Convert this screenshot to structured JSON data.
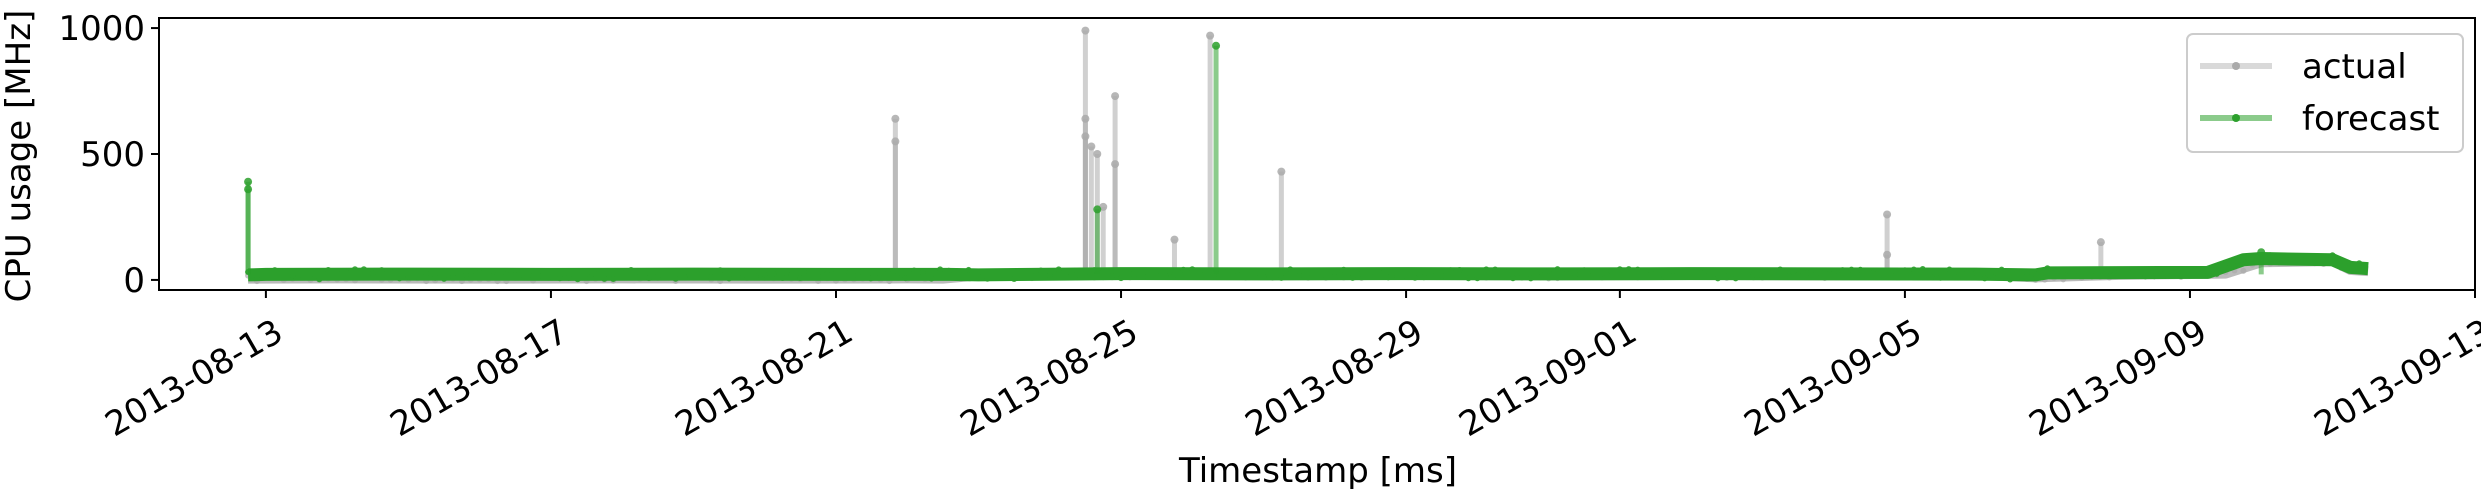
{
  "chart_data": {
    "type": "line",
    "title": "",
    "xlabel": "Timestamp [ms]",
    "ylabel": "CPU usage [MHz]",
    "ylim": [
      -40,
      1040
    ],
    "xlim": [
      "2013-08-11T12:00",
      "2013-09-13"
    ],
    "x_ticks": [
      "2013-08-13",
      "2013-08-17",
      "2013-08-21",
      "2013-08-25",
      "2013-08-29",
      "2013-09-01",
      "2013-09-05",
      "2013-09-09",
      "2013-09-13"
    ],
    "y_ticks": [
      0,
      500,
      1000
    ],
    "grid": false,
    "legend_position": "top-right",
    "series": [
      {
        "name": "actual",
        "color": "#aaaaaa",
        "baseline": [
          [
            "2013-08-12T18:00",
            5
          ],
          [
            "2013-08-14T00:00",
            6
          ],
          [
            "2013-08-16T00:00",
            5
          ],
          [
            "2013-08-18T00:00",
            6
          ],
          [
            "2013-08-20T00:00",
            5
          ],
          [
            "2013-08-22T00:00",
            6
          ],
          [
            "2013-08-22T12:00",
            5
          ],
          [
            "2013-08-23T00:00",
            18
          ],
          [
            "2013-08-25T00:00",
            20
          ],
          [
            "2013-08-27T00:00",
            18
          ],
          [
            "2013-08-29T00:00",
            20
          ],
          [
            "2013-08-31T00:00",
            18
          ],
          [
            "2013-09-02T00:00",
            20
          ],
          [
            "2013-09-04T00:00",
            18
          ],
          [
            "2013-09-06T00:00",
            20
          ],
          [
            "2013-09-06T20:00",
            10
          ],
          [
            "2013-09-08T00:00",
            20
          ],
          [
            "2013-09-09T12:00",
            25
          ],
          [
            "2013-09-10T00:00",
            70
          ],
          [
            "2013-09-11T00:00",
            75
          ],
          [
            "2013-09-11T06:00",
            40
          ],
          [
            "2013-09-11T12:00",
            35
          ]
        ],
        "spikes": [
          [
            "2013-08-21T20:00",
            640
          ],
          [
            "2013-08-21T20:00",
            550
          ],
          [
            "2013-08-24T12:00",
            990
          ],
          [
            "2013-08-24T12:00",
            640
          ],
          [
            "2013-08-24T12:00",
            570
          ],
          [
            "2013-08-24T14:00",
            530
          ],
          [
            "2013-08-24T16:00",
            500
          ],
          [
            "2013-08-24T18:00",
            290
          ],
          [
            "2013-08-24T22:00",
            730
          ],
          [
            "2013-08-24T22:00",
            460
          ],
          [
            "2013-08-25T18:00",
            160
          ],
          [
            "2013-08-26T06:00",
            970
          ],
          [
            "2013-08-27T06:00",
            430
          ],
          [
            "2013-09-04T18:00",
            260
          ],
          [
            "2013-09-04T18:00",
            100
          ],
          [
            "2013-09-07T18:00",
            150
          ]
        ]
      },
      {
        "name": "forecast",
        "color": "#2ca02c",
        "baseline": [
          [
            "2013-08-12T18:00",
            20
          ],
          [
            "2013-08-13T00:00",
            22
          ],
          [
            "2013-08-15T00:00",
            23
          ],
          [
            "2013-08-17T00:00",
            22
          ],
          [
            "2013-08-19T00:00",
            23
          ],
          [
            "2013-08-21T00:00",
            22
          ],
          [
            "2013-08-22T14:00",
            22
          ],
          [
            "2013-08-23T00:00",
            20
          ],
          [
            "2013-08-25T00:00",
            25
          ],
          [
            "2013-08-27T00:00",
            24
          ],
          [
            "2013-08-29T00:00",
            25
          ],
          [
            "2013-08-31T00:00",
            24
          ],
          [
            "2013-09-02T00:00",
            25
          ],
          [
            "2013-09-04T00:00",
            24
          ],
          [
            "2013-09-06T00:00",
            23
          ],
          [
            "2013-09-06T20:00",
            20
          ],
          [
            "2013-09-07T00:00",
            28
          ],
          [
            "2013-09-09T06:00",
            30
          ],
          [
            "2013-09-09T18:00",
            80
          ],
          [
            "2013-09-10T00:00",
            85
          ],
          [
            "2013-09-11T00:00",
            80
          ],
          [
            "2013-09-11T06:00",
            50
          ],
          [
            "2013-09-11T12:00",
            45
          ]
        ],
        "spikes": [
          [
            "2013-08-12T18:00",
            390
          ],
          [
            "2013-08-12T18:00",
            360
          ],
          [
            "2013-08-24T16:00",
            280
          ],
          [
            "2013-08-26T08:00",
            930
          ],
          [
            "2013-09-10T00:00",
            110
          ]
        ]
      }
    ]
  }
}
